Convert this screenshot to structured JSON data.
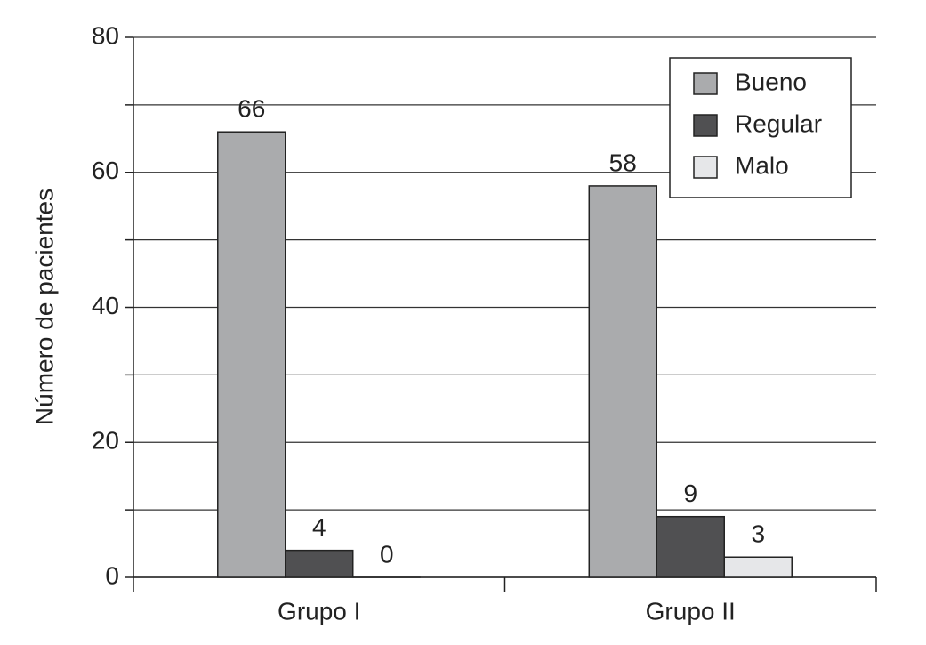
{
  "chart_data": {
    "type": "bar",
    "y_label": "Número de pacientes",
    "categories": [
      "Grupo I",
      "Grupo II"
    ],
    "series": [
      {
        "name": "Bueno",
        "color": "#aaabad",
        "values": [
          66,
          58
        ]
      },
      {
        "name": "Regular",
        "color": "#505052",
        "values": [
          4,
          9
        ]
      },
      {
        "name": "Malo",
        "color": "#e6e7e9",
        "values": [
          0,
          3
        ]
      }
    ],
    "ylim": [
      0,
      80
    ],
    "yticks": [
      0,
      20,
      40,
      60,
      80
    ],
    "minor_yticks": [
      10,
      30,
      50,
      70
    ],
    "grid": true,
    "legend": "upper right"
  }
}
